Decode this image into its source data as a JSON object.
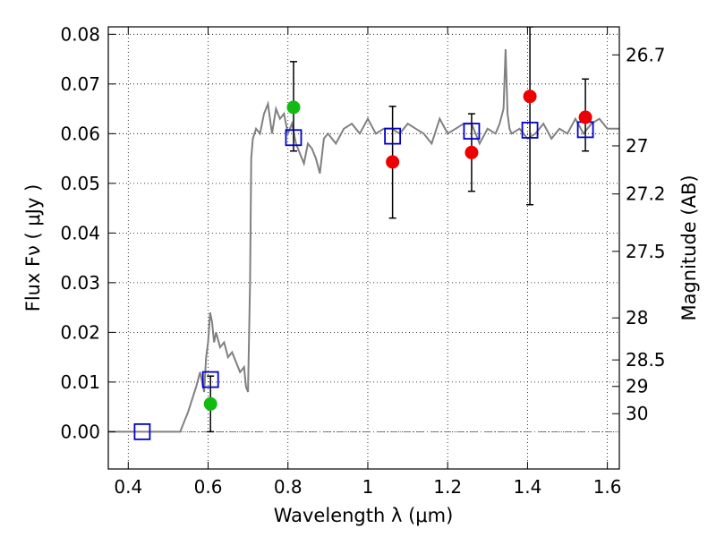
{
  "chart_data": {
    "type": "scatter",
    "xlabel": "Wavelength  λ (μm)",
    "ylabel_left": "Flux  Fν  ( μJy )",
    "ylabel_right": "Magnitude (AB)",
    "xlim": [
      0.35,
      1.63
    ],
    "ylim": [
      -0.0075,
      0.0815
    ],
    "grid": true,
    "x_ticks": [
      {
        "value": 0.4,
        "label": "0.4"
      },
      {
        "value": 0.6,
        "label": "0.6"
      },
      {
        "value": 0.8,
        "label": "0.8"
      },
      {
        "value": 1.0,
        "label": "1"
      },
      {
        "value": 1.2,
        "label": "1.2"
      },
      {
        "value": 1.4,
        "label": "1.4"
      },
      {
        "value": 1.6,
        "label": "1.6"
      }
    ],
    "y_ticks": [
      {
        "value": 0.0,
        "label": "0.00"
      },
      {
        "value": 0.01,
        "label": "0.01"
      },
      {
        "value": 0.02,
        "label": "0.02"
      },
      {
        "value": 0.03,
        "label": "0.03"
      },
      {
        "value": 0.04,
        "label": "0.04"
      },
      {
        "value": 0.05,
        "label": "0.05"
      },
      {
        "value": 0.06,
        "label": "0.06"
      },
      {
        "value": 0.07,
        "label": "0.07"
      },
      {
        "value": 0.08,
        "label": "0.08"
      }
    ],
    "right_ticks": [
      {
        "mag": 26.7,
        "label": "26.7"
      },
      {
        "mag": 27.0,
        "label": "27"
      },
      {
        "mag": 27.2,
        "label": "27.2"
      },
      {
        "mag": 27.5,
        "label": "27.5"
      },
      {
        "mag": 28.0,
        "label": "28"
      },
      {
        "mag": 28.5,
        "label": "28.5"
      },
      {
        "mag": 29.0,
        "label": "29"
      },
      {
        "mag": 30.0,
        "label": "30"
      }
    ],
    "colors": {
      "template": "#808080",
      "model_box": "#0000cc",
      "green": "#11bb11",
      "red": "#ee0000",
      "error": "#000000",
      "zero_line": "#555555"
    },
    "template_spectrum": {
      "x": [
        0.35,
        0.44,
        0.5,
        0.52,
        0.53,
        0.55,
        0.57,
        0.58,
        0.59,
        0.595,
        0.6,
        0.605,
        0.61,
        0.615,
        0.62,
        0.63,
        0.64,
        0.65,
        0.66,
        0.67,
        0.68,
        0.69,
        0.695,
        0.7,
        0.705,
        0.708,
        0.712,
        0.72,
        0.73,
        0.74,
        0.75,
        0.76,
        0.77,
        0.78,
        0.79,
        0.8,
        0.81,
        0.82,
        0.83,
        0.84,
        0.85,
        0.86,
        0.87,
        0.88,
        0.89,
        0.9,
        0.92,
        0.94,
        0.96,
        0.98,
        1.0,
        1.02,
        1.04,
        1.06,
        1.08,
        1.1,
        1.12,
        1.14,
        1.16,
        1.18,
        1.2,
        1.22,
        1.24,
        1.26,
        1.28,
        1.3,
        1.32,
        1.33,
        1.34,
        1.345,
        1.35,
        1.355,
        1.36,
        1.38,
        1.4,
        1.42,
        1.44,
        1.46,
        1.48,
        1.5,
        1.52,
        1.54,
        1.56,
        1.58,
        1.6,
        1.63
      ],
      "y": [
        0.0,
        0.0,
        0.0,
        0.0,
        0.0,
        0.004,
        0.009,
        0.012,
        0.008,
        0.015,
        0.018,
        0.024,
        0.022,
        0.018,
        0.02,
        0.017,
        0.018,
        0.015,
        0.016,
        0.014,
        0.012,
        0.013,
        0.009,
        0.008,
        0.03,
        0.055,
        0.059,
        0.061,
        0.06,
        0.064,
        0.066,
        0.06,
        0.065,
        0.063,
        0.064,
        0.06,
        0.062,
        0.058,
        0.056,
        0.054,
        0.058,
        0.057,
        0.055,
        0.052,
        0.059,
        0.06,
        0.058,
        0.061,
        0.062,
        0.06,
        0.063,
        0.06,
        0.061,
        0.061,
        0.06,
        0.062,
        0.061,
        0.06,
        0.058,
        0.063,
        0.06,
        0.061,
        0.062,
        0.062,
        0.058,
        0.061,
        0.06,
        0.062,
        0.065,
        0.077,
        0.064,
        0.061,
        0.06,
        0.061,
        0.059,
        0.06,
        0.062,
        0.059,
        0.061,
        0.06,
        0.063,
        0.06,
        0.062,
        0.063,
        0.061,
        0.061
      ]
    },
    "model_photometry": [
      {
        "x": 0.435,
        "y": 0.0
      },
      {
        "x": 0.606,
        "y": 0.0105
      },
      {
        "x": 0.814,
        "y": 0.0592
      },
      {
        "x": 1.062,
        "y": 0.0595
      },
      {
        "x": 1.26,
        "y": 0.0605
      },
      {
        "x": 1.406,
        "y": 0.0607
      },
      {
        "x": 1.545,
        "y": 0.0608
      }
    ],
    "observed_green": [
      {
        "x": 0.606,
        "y": 0.0056,
        "yerr_low": 0.0056,
        "yerr_high": 0.0056
      },
      {
        "x": 0.814,
        "y": 0.0653,
        "yerr_low": 0.0088,
        "yerr_high": 0.0092
      }
    ],
    "observed_red": [
      {
        "x": 1.062,
        "y": 0.0543,
        "yerr_low": 0.0113,
        "yerr_high": 0.0112
      },
      {
        "x": 1.26,
        "y": 0.0562,
        "yerr_low": 0.0078,
        "yerr_high": 0.0078
      },
      {
        "x": 1.406,
        "y": 0.0675,
        "yerr_low": 0.0218,
        "yerr_high": 0.014
      },
      {
        "x": 1.545,
        "y": 0.0633,
        "yerr_low": 0.0068,
        "yerr_high": 0.0077
      }
    ]
  }
}
